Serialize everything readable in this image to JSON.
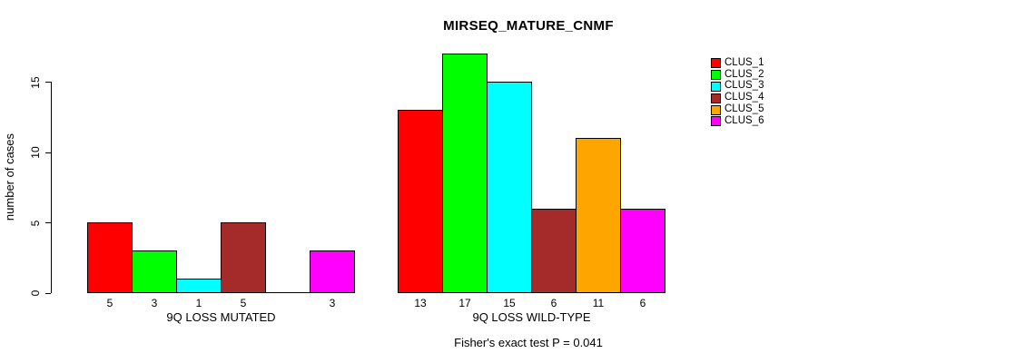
{
  "chart_data": {
    "type": "bar",
    "title": "MIRSEQ_MATURE_CNMF",
    "ylabel": "number of cases",
    "yticks": [
      0,
      5,
      10,
      15
    ],
    "ylim": [
      0,
      17
    ],
    "grid": false,
    "legend_position": "right",
    "series": [
      {
        "name": "CLUS_1",
        "color": "#FF0000"
      },
      {
        "name": "CLUS_2",
        "color": "#00FF00"
      },
      {
        "name": "CLUS_3",
        "color": "#00FFFF"
      },
      {
        "name": "CLUS_4",
        "color": "#A52A2A"
      },
      {
        "name": "CLUS_5",
        "color": "#FFA500"
      },
      {
        "name": "CLUS_6",
        "color": "#FF00FF"
      }
    ],
    "groups": [
      {
        "label": "9Q LOSS MUTATED",
        "values": [
          5,
          3,
          1,
          5,
          0,
          3
        ],
        "bar_labels": [
          "5",
          "3",
          "1",
          "5",
          "",
          "3"
        ]
      },
      {
        "label": "9Q LOSS WILD-TYPE",
        "values": [
          13,
          17,
          15,
          6,
          11,
          6
        ],
        "bar_labels": [
          "13",
          "17",
          "15",
          "6",
          "11",
          "6"
        ]
      }
    ],
    "footer": "Fisher's exact test P = 0.041",
    "axis_color": "#000000",
    "background_color": "#FFFFFF"
  }
}
